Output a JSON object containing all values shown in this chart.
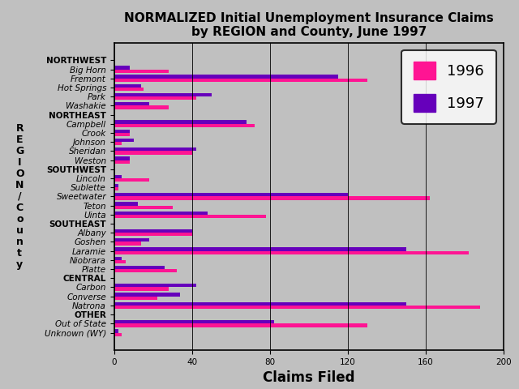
{
  "title": "NORMALIZED Initial Unemployment Insurance Claims\nby REGION and County, June 1997",
  "xlabel": "Claims Filed",
  "ylabel_chars": [
    "R",
    "E",
    "G",
    "I",
    "O",
    "N",
    "/",
    "C",
    "o",
    "u",
    "n",
    "t",
    "y"
  ],
  "categories": [
    "NORTHWEST",
    "Big Horn",
    "Fremont",
    "Hot Springs",
    "Park",
    "Washakie",
    "NORTHEAST",
    "Campbell",
    "Crook",
    "Johnson",
    "Sheridan",
    "Weston",
    "SOUTHWEST",
    "Lincoln",
    "Sublette",
    "Sweetwater",
    "Teton",
    "Uinta",
    "SOUTHEAST",
    "Albany",
    "Goshen",
    "Laramie",
    "Niobrara",
    "Platte",
    "CENTRAL",
    "Carbon",
    "Converse",
    "Natrona",
    "OTHER",
    "Out of State",
    "Unknown (WY)"
  ],
  "values_1996": [
    0,
    28,
    130,
    15,
    42,
    28,
    0,
    72,
    8,
    4,
    40,
    8,
    0,
    18,
    2,
    162,
    30,
    78,
    0,
    40,
    14,
    182,
    6,
    32,
    0,
    28,
    22,
    188,
    0,
    130,
    4
  ],
  "values_1997": [
    0,
    8,
    115,
    14,
    50,
    18,
    0,
    68,
    8,
    10,
    42,
    8,
    0,
    4,
    2,
    120,
    12,
    48,
    0,
    40,
    18,
    150,
    4,
    26,
    0,
    42,
    34,
    150,
    0,
    82,
    2
  ],
  "color_1996": "#FF1493",
  "color_1997": "#6600BB",
  "background_color": "#C0C0C0",
  "region_labels": [
    "NORTHWEST",
    "NORTHEAST",
    "SOUTHWEST",
    "SOUTHEAST",
    "CENTRAL",
    "OTHER"
  ],
  "xlim": [
    0,
    200
  ],
  "xticks": [
    0,
    40,
    80,
    120,
    160,
    200
  ],
  "title_fontsize": 11,
  "xlabel_fontsize": 12,
  "tick_fontsize": 7.5,
  "bar_height": 0.38,
  "legend_fontsize": 13
}
